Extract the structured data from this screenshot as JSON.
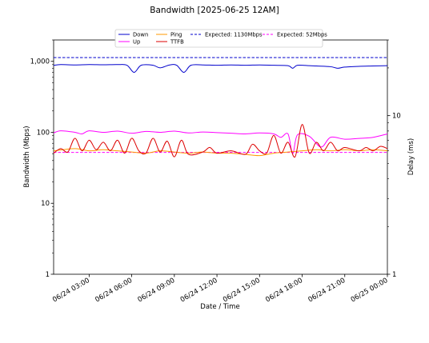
{
  "chart_data": {
    "type": "line",
    "title": "Bandwidth [2025-06-25 12AM]",
    "xlabel": "Date / Time",
    "ylabel_left": "Bandwidth (Mbps)",
    "ylabel_right": "Delay (ms)",
    "x_range": [
      "2025-06-24 00:30",
      "2025-06-25 00:00"
    ],
    "x_ticks": [
      {
        "value": "2025-06-24 03:00",
        "label": "06/24 03:00"
      },
      {
        "value": "2025-06-24 06:00",
        "label": "06/24 06:00"
      },
      {
        "value": "2025-06-24 09:00",
        "label": "06/24 09:00"
      },
      {
        "value": "2025-06-24 12:00",
        "label": "06/24 12:00"
      },
      {
        "value": "2025-06-24 15:00",
        "label": "06/24 15:00"
      },
      {
        "value": "2025-06-24 18:00",
        "label": "06/24 18:00"
      },
      {
        "value": "2025-06-24 21:00",
        "label": "06/24 21:00"
      },
      {
        "value": "2025-06-25 00:00",
        "label": "06/25 00:00"
      }
    ],
    "y_left": {
      "scale": "log",
      "range": [
        1,
        2000
      ],
      "ticks": [
        {
          "value": 1,
          "label": "1"
        },
        {
          "value": 10,
          "label": "10"
        },
        {
          "value": 100,
          "label": "100"
        },
        {
          "value": 1000,
          "label": "1,000"
        }
      ]
    },
    "y_right": {
      "scale": "log",
      "range": [
        1,
        30
      ],
      "ticks": [
        {
          "value": 1,
          "label": "1"
        },
        {
          "value": 10,
          "label": "10"
        }
      ]
    },
    "legend": {
      "placement": "top-center",
      "columns": 3
    },
    "reference_lines": [
      {
        "name": "Expected: 1130Mbps",
        "value": 1130,
        "axis": "left",
        "color": "#0000cc",
        "style": "dashed"
      },
      {
        "name": "Expected: 52Mbps",
        "value": 52,
        "axis": "left",
        "color": "#ff00ff",
        "style": "dashed"
      }
    ],
    "series": [
      {
        "name": "Down",
        "axis": "left",
        "color": "#0000cc",
        "points": [
          [
            "2025-06-24 00:30",
            880
          ],
          [
            "2025-06-24 01:00",
            900
          ],
          [
            "2025-06-24 02:00",
            890
          ],
          [
            "2025-06-24 03:00",
            900
          ],
          [
            "2025-06-24 04:00",
            895
          ],
          [
            "2025-06-24 05:00",
            900
          ],
          [
            "2025-06-24 05:40",
            880
          ],
          [
            "2025-06-24 06:10",
            700
          ],
          [
            "2025-06-24 06:40",
            880
          ],
          [
            "2025-06-24 07:30",
            880
          ],
          [
            "2025-06-24 08:00",
            810
          ],
          [
            "2025-06-24 08:40",
            890
          ],
          [
            "2025-06-24 09:10",
            880
          ],
          [
            "2025-06-24 09:40",
            700
          ],
          [
            "2025-06-24 10:10",
            880
          ],
          [
            "2025-06-24 11:00",
            890
          ],
          [
            "2025-06-24 12:00",
            880
          ],
          [
            "2025-06-24 13:00",
            890
          ],
          [
            "2025-06-24 14:00",
            880
          ],
          [
            "2025-06-24 15:00",
            890
          ],
          [
            "2025-06-24 16:00",
            880
          ],
          [
            "2025-06-24 17:00",
            870
          ],
          [
            "2025-06-24 17:20",
            800
          ],
          [
            "2025-06-24 17:40",
            880
          ],
          [
            "2025-06-24 18:30",
            870
          ],
          [
            "2025-06-24 19:00",
            860
          ],
          [
            "2025-06-24 20:00",
            840
          ],
          [
            "2025-06-24 20:30",
            800
          ],
          [
            "2025-06-24 21:00",
            830
          ],
          [
            "2025-06-24 22:00",
            850
          ],
          [
            "2025-06-24 23:00",
            860
          ],
          [
            "2025-06-25 00:00",
            870
          ]
        ]
      },
      {
        "name": "Up",
        "axis": "left",
        "color": "#ff00ff",
        "points": [
          [
            "2025-06-24 00:30",
            98
          ],
          [
            "2025-06-24 01:00",
            105
          ],
          [
            "2025-06-24 02:00",
            100
          ],
          [
            "2025-06-24 02:30",
            95
          ],
          [
            "2025-06-24 03:00",
            105
          ],
          [
            "2025-06-24 04:00",
            100
          ],
          [
            "2025-06-24 05:00",
            104
          ],
          [
            "2025-06-24 06:00",
            97
          ],
          [
            "2025-06-24 07:00",
            103
          ],
          [
            "2025-06-24 08:00",
            100
          ],
          [
            "2025-06-24 09:00",
            104
          ],
          [
            "2025-06-24 10:00",
            98
          ],
          [
            "2025-06-24 11:00",
            101
          ],
          [
            "2025-06-24 12:00",
            99
          ],
          [
            "2025-06-24 13:00",
            97
          ],
          [
            "2025-06-24 14:00",
            95
          ],
          [
            "2025-06-24 15:00",
            98
          ],
          [
            "2025-06-24 16:00",
            95
          ],
          [
            "2025-06-24 16:30",
            85
          ],
          [
            "2025-06-24 17:00",
            95
          ],
          [
            "2025-06-24 17:20",
            50
          ],
          [
            "2025-06-24 17:40",
            92
          ],
          [
            "2025-06-24 18:30",
            88
          ],
          [
            "2025-06-24 19:20",
            62
          ],
          [
            "2025-06-24 20:00",
            85
          ],
          [
            "2025-06-24 21:00",
            80
          ],
          [
            "2025-06-24 22:00",
            82
          ],
          [
            "2025-06-24 23:00",
            85
          ],
          [
            "2025-06-25 00:00",
            95
          ]
        ]
      },
      {
        "name": "Ping",
        "axis": "right",
        "color": "#ff9900",
        "points": [
          [
            "2025-06-24 00:30",
            6.0
          ],
          [
            "2025-06-24 02:00",
            6.2
          ],
          [
            "2025-06-24 03:00",
            6.0
          ],
          [
            "2025-06-24 04:00",
            6.1
          ],
          [
            "2025-06-24 05:00",
            6.0
          ],
          [
            "2025-06-24 06:00",
            5.9
          ],
          [
            "2025-06-24 07:00",
            5.8
          ],
          [
            "2025-06-24 08:00",
            6.0
          ],
          [
            "2025-06-24 09:00",
            5.9
          ],
          [
            "2025-06-24 10:00",
            5.8
          ],
          [
            "2025-06-24 11:00",
            5.9
          ],
          [
            "2025-06-24 12:00",
            5.8
          ],
          [
            "2025-06-24 13:00",
            5.8
          ],
          [
            "2025-06-24 14:00",
            5.7
          ],
          [
            "2025-06-24 15:00",
            5.6
          ],
          [
            "2025-06-24 16:00",
            5.8
          ],
          [
            "2025-06-24 17:00",
            5.9
          ],
          [
            "2025-06-24 18:00",
            6.0
          ],
          [
            "2025-06-24 19:00",
            6.1
          ],
          [
            "2025-06-24 20:00",
            6.0
          ],
          [
            "2025-06-24 21:00",
            6.1
          ],
          [
            "2025-06-24 22:00",
            6.0
          ],
          [
            "2025-06-24 23:00",
            6.1
          ],
          [
            "2025-06-25 00:00",
            6.0
          ]
        ]
      },
      {
        "name": "TTFB",
        "axis": "right",
        "color": "#dd0000",
        "points": [
          [
            "2025-06-24 00:30",
            5.8
          ],
          [
            "2025-06-24 01:00",
            6.2
          ],
          [
            "2025-06-24 01:30",
            5.9
          ],
          [
            "2025-06-24 02:00",
            7.2
          ],
          [
            "2025-06-24 02:30",
            6.0
          ],
          [
            "2025-06-24 03:00",
            7.0
          ],
          [
            "2025-06-24 03:30",
            6.1
          ],
          [
            "2025-06-24 04:00",
            6.8
          ],
          [
            "2025-06-24 04:30",
            6.0
          ],
          [
            "2025-06-24 05:00",
            7.0
          ],
          [
            "2025-06-24 05:30",
            5.8
          ],
          [
            "2025-06-24 06:00",
            7.2
          ],
          [
            "2025-06-24 06:30",
            6.0
          ],
          [
            "2025-06-24 07:00",
            5.8
          ],
          [
            "2025-06-24 07:30",
            7.2
          ],
          [
            "2025-06-24 08:00",
            5.9
          ],
          [
            "2025-06-24 08:30",
            6.9
          ],
          [
            "2025-06-24 09:00",
            5.5
          ],
          [
            "2025-06-24 09:30",
            7.0
          ],
          [
            "2025-06-24 10:00",
            5.7
          ],
          [
            "2025-06-24 11:00",
            5.9
          ],
          [
            "2025-06-24 11:30",
            6.3
          ],
          [
            "2025-06-24 12:00",
            5.8
          ],
          [
            "2025-06-24 13:00",
            6.0
          ],
          [
            "2025-06-24 14:00",
            5.7
          ],
          [
            "2025-06-24 14:30",
            6.6
          ],
          [
            "2025-06-24 15:00",
            6.0
          ],
          [
            "2025-06-24 15:30",
            5.8
          ],
          [
            "2025-06-24 16:00",
            7.5
          ],
          [
            "2025-06-24 16:30",
            5.8
          ],
          [
            "2025-06-24 17:00",
            6.8
          ],
          [
            "2025-06-24 17:30",
            5.5
          ],
          [
            "2025-06-24 18:00",
            8.8
          ],
          [
            "2025-06-24 18:30",
            5.8
          ],
          [
            "2025-06-24 19:00",
            6.8
          ],
          [
            "2025-06-24 19:30",
            6.0
          ],
          [
            "2025-06-24 20:00",
            6.8
          ],
          [
            "2025-06-24 20:30",
            6.0
          ],
          [
            "2025-06-24 21:00",
            6.3
          ],
          [
            "2025-06-24 22:00",
            6.0
          ],
          [
            "2025-06-24 22:30",
            6.3
          ],
          [
            "2025-06-24 23:00",
            6.0
          ],
          [
            "2025-06-24 23:30",
            6.4
          ],
          [
            "2025-06-25 00:00",
            6.2
          ]
        ]
      }
    ]
  }
}
